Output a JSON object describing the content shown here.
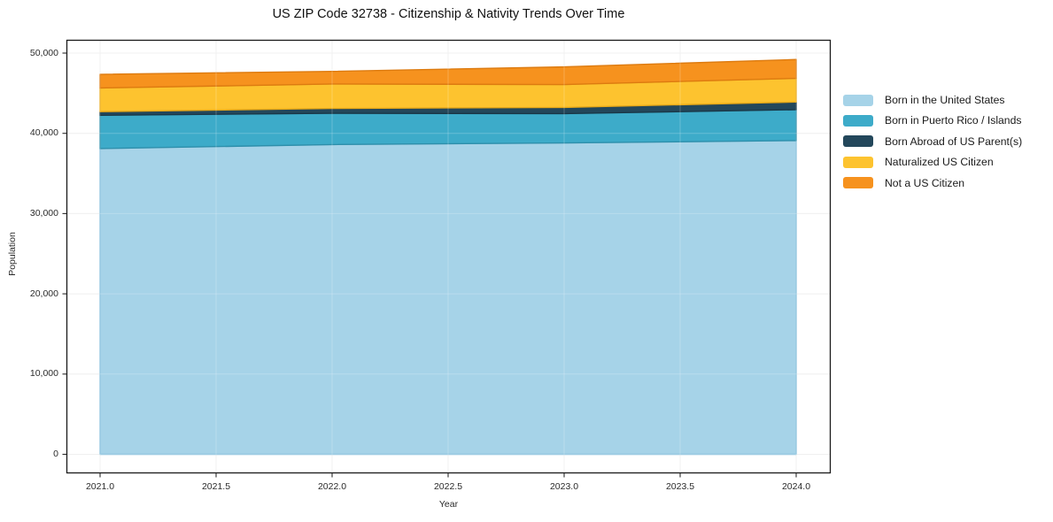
{
  "chart_data": {
    "type": "area",
    "stacked": true,
    "title": "US ZIP Code 32738 - Citizenship & Nativity Trends Over Time",
    "xlabel": "Year",
    "ylabel": "Population",
    "x": [
      2021,
      2022,
      2023,
      2024
    ],
    "xlim": [
      2021,
      2024
    ],
    "ylim": [
      0,
      50000
    ],
    "grid": true,
    "legend_position": "right-of-plot",
    "x_ticks": {
      "values": [
        2021.0,
        2021.5,
        2022.0,
        2022.5,
        2023.0,
        2023.5,
        2024.0
      ],
      "labels": [
        "2021.0",
        "2021.5",
        "2022.0",
        "2022.5",
        "2023.0",
        "2023.5",
        "2024.0"
      ]
    },
    "y_ticks": {
      "values": [
        0,
        10000,
        20000,
        30000,
        40000,
        50000
      ],
      "labels": [
        "0",
        "10,000",
        "20,000",
        "30,000",
        "40,000",
        "50,000"
      ]
    },
    "series": [
      {
        "name": "Born in the United States",
        "color": "#a6d3e8",
        "edge_color": "#83bedb",
        "values": [
          38100,
          38600,
          38800,
          39100
        ]
      },
      {
        "name": "Born in Puerto Rico / Islands",
        "color": "#3dabc9",
        "edge_color": "#2e8fab",
        "values": [
          4150,
          3900,
          3650,
          3850
        ]
      },
      {
        "name": "Born Abroad of US Parent(s)",
        "color": "#23475b",
        "edge_color": "#1a3848",
        "values": [
          450,
          600,
          780,
          950
        ]
      },
      {
        "name": "Naturalized US Citizen",
        "color": "#fdc32f",
        "edge_color": "#e8a918",
        "values": [
          2950,
          3050,
          2850,
          2950
        ]
      },
      {
        "name": "Not a US Citizen",
        "color": "#f6921e",
        "edge_color": "#dd7b10",
        "values": [
          1700,
          1570,
          2200,
          2350
        ]
      }
    ],
    "colors": {
      "background": "#ffffff",
      "spine": "#1a1a1a",
      "grid": "#ececec",
      "grid_overlay": "rgba(255,255,255,0.22)",
      "tick_mark": "#2b2b2b"
    }
  }
}
